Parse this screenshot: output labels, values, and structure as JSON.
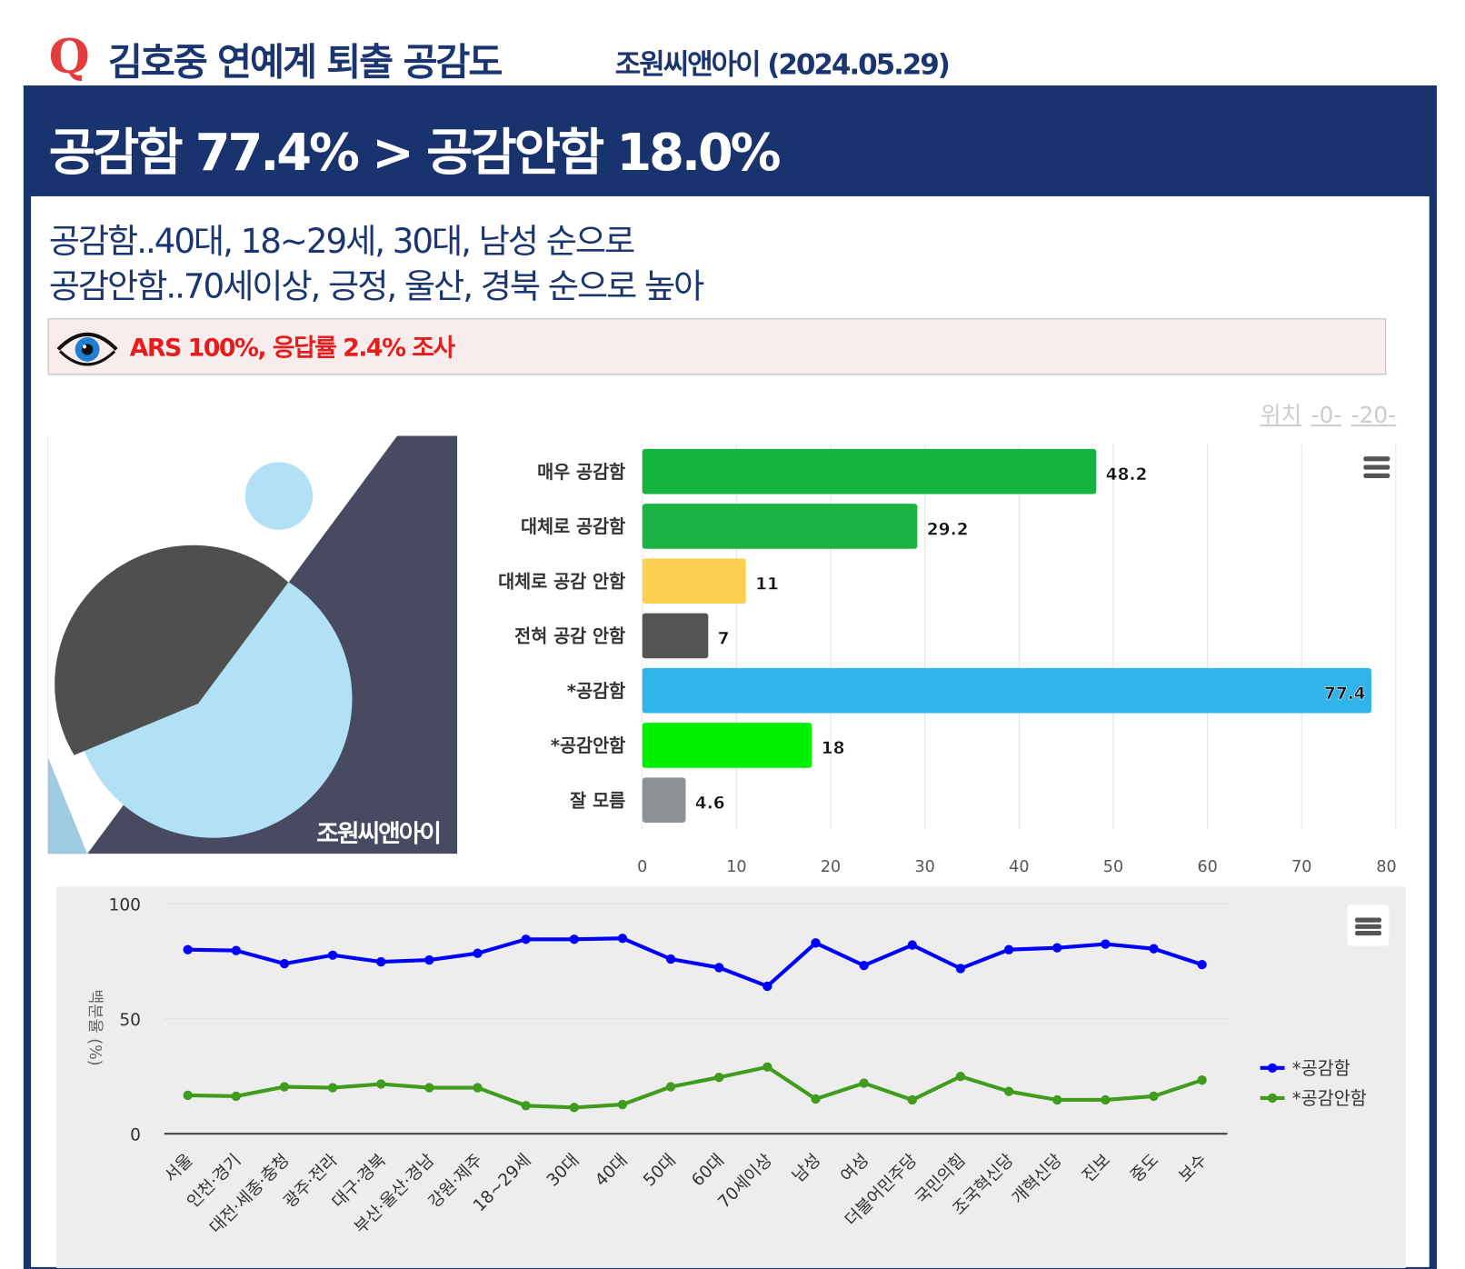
{
  "header": {
    "q_mark": "Q",
    "title": "김호중 연예계 퇴출 공감도",
    "source": "조원씨앤아이 (2024.05.29)"
  },
  "headline": "공감함 77.4% > 공감안함 18.0%",
  "subtitle": [
    "공감함..40대, 18~29세, 30대, 남성 순으로",
    "공감안함..70세이상, 긍정, 울산, 경북 순으로 높아"
  ],
  "note": "ARS 100%, 응답률 2.4% 조사",
  "position": {
    "label": "위치",
    "p0": "-0-",
    "p20": "-20-"
  },
  "logo_text": "조원씨앤아이",
  "chart_data": [
    {
      "type": "bar",
      "orientation": "horizontal",
      "categories": [
        "매우 공감함",
        "대체로 공감함",
        "대체로 공감 안함",
        "전혀 공감 안함",
        "*공감함",
        "*공감안함",
        "잘 모름"
      ],
      "values": [
        48.2,
        29.2,
        11,
        7,
        77.4,
        18,
        4.6
      ],
      "colors": [
        "#13b53f",
        "#1db446",
        "#fcd050",
        "#555555",
        "#31b4ea",
        "#00f000",
        "#8d9095"
      ],
      "xlim": [
        0,
        80
      ],
      "xticks": [
        "0",
        "10",
        "20",
        "30",
        "40",
        "50",
        "60",
        "70",
        "80"
      ]
    },
    {
      "type": "line",
      "ylabel": "백분율 (%)",
      "ylim": [
        0,
        100
      ],
      "yticks": [
        "0",
        "50",
        "100"
      ],
      "categories": [
        "서울",
        "인천·경기",
        "대전·세종·충청",
        "광주·전라",
        "대구·경북",
        "부산·울산·경남",
        "강원·제주",
        "18~29세",
        "30대",
        "40대",
        "50대",
        "60대",
        "70세이상",
        "남성",
        "여성",
        "더불어민주당",
        "국민의힘",
        "조국혁신당",
        "개혁신당",
        "진보",
        "중도",
        "보수"
      ],
      "series": [
        {
          "name": "*공감함",
          "color": "#0000ff",
          "values": [
            80.0,
            79.6,
            73.9,
            77.6,
            74.7,
            75.5,
            78.4,
            84.5,
            84.5,
            84.9,
            75.9,
            72.2,
            64.1,
            82.9,
            73.1,
            82.0,
            71.8,
            80.0,
            80.8,
            82.4,
            80.4,
            73.5
          ]
        },
        {
          "name": "*공감안함",
          "color": "#3f9c1c",
          "values": [
            16.7,
            16.3,
            20.4,
            20.0,
            21.6,
            20.0,
            20.0,
            12.2,
            11.4,
            12.7,
            20.4,
            24.5,
            29.0,
            15.1,
            22.0,
            14.7,
            24.9,
            18.4,
            14.7,
            14.7,
            16.3,
            23.3
          ]
        }
      ],
      "legend": "right"
    }
  ]
}
